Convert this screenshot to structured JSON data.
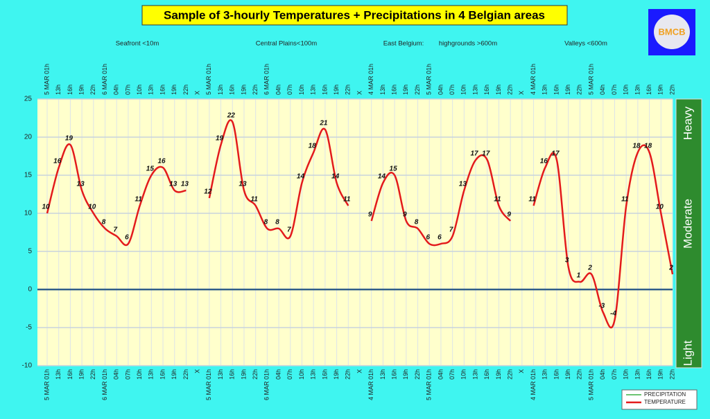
{
  "chart_data": {
    "type": "line",
    "title": "Sample of 3-hourly Temperatures + Precipitations in 4 Belgian areas",
    "region_labels": [
      "Seafront <10m",
      "Central Plains<100m",
      "East Belgium:",
      "highgrounds >600m",
      "Valleys <600m"
    ],
    "intensity_labels": [
      "Heavy",
      "Moderate",
      "Light"
    ],
    "logo_text": "BMCB",
    "categories": [
      "5 MAR 01h",
      "13h",
      "16h",
      "19h",
      "22h",
      "6 MAR 01h",
      "04h",
      "07h",
      "10h",
      "13h",
      "16h",
      "19h",
      "22h",
      "X",
      "5 MAR 01h",
      "13h",
      "16h",
      "19h",
      "22h",
      "6 MAR 01h",
      "04h",
      "07h",
      "10h",
      "13h",
      "16h",
      "19h",
      "22h",
      "X",
      "4 MAR 01h",
      "13h",
      "16h",
      "19h",
      "22h",
      "5 MAR 01h",
      "04h",
      "07h",
      "10h",
      "13h",
      "16h",
      "19h",
      "22h",
      "X",
      "4 MAR 01h",
      "13h",
      "16h",
      "19h",
      "22h",
      "5 MAR 01h",
      "04h",
      "07h",
      "10h",
      "13h",
      "16h",
      "19h",
      "22h"
    ],
    "series": [
      {
        "name": "PRECIPITATION",
        "color": "#3cb043",
        "values": [
          null,
          null,
          null,
          null,
          null,
          null,
          null,
          null,
          null,
          null,
          null,
          null,
          null,
          null,
          null,
          null,
          null,
          null,
          null,
          null,
          null,
          null,
          null,
          null,
          null,
          null,
          null,
          null,
          null,
          null,
          null,
          null,
          null,
          null,
          null,
          null,
          null,
          null,
          null,
          null,
          null,
          null,
          null,
          null,
          null,
          null,
          null,
          null,
          null,
          null,
          null,
          null,
          null,
          null,
          null
        ]
      },
      {
        "name": "TEMPERATURE",
        "color": "#e31a1c",
        "values": [
          10,
          16,
          19,
          13,
          10,
          8,
          7,
          6,
          11,
          15,
          16,
          13,
          13,
          null,
          12,
          19,
          22,
          13,
          11,
          8,
          8,
          7,
          14,
          18,
          21,
          14,
          11,
          null,
          9,
          14,
          15,
          9,
          8,
          6,
          6,
          7,
          13,
          17,
          17,
          11,
          9,
          null,
          11,
          16,
          17,
          3,
          1,
          2,
          -3,
          -4,
          11,
          18,
          18,
          10,
          2
        ]
      }
    ],
    "ylim": [
      -10,
      25
    ],
    "yticks": [
      -10,
      -5,
      0,
      5,
      10,
      15,
      20,
      25
    ],
    "grid": true
  }
}
